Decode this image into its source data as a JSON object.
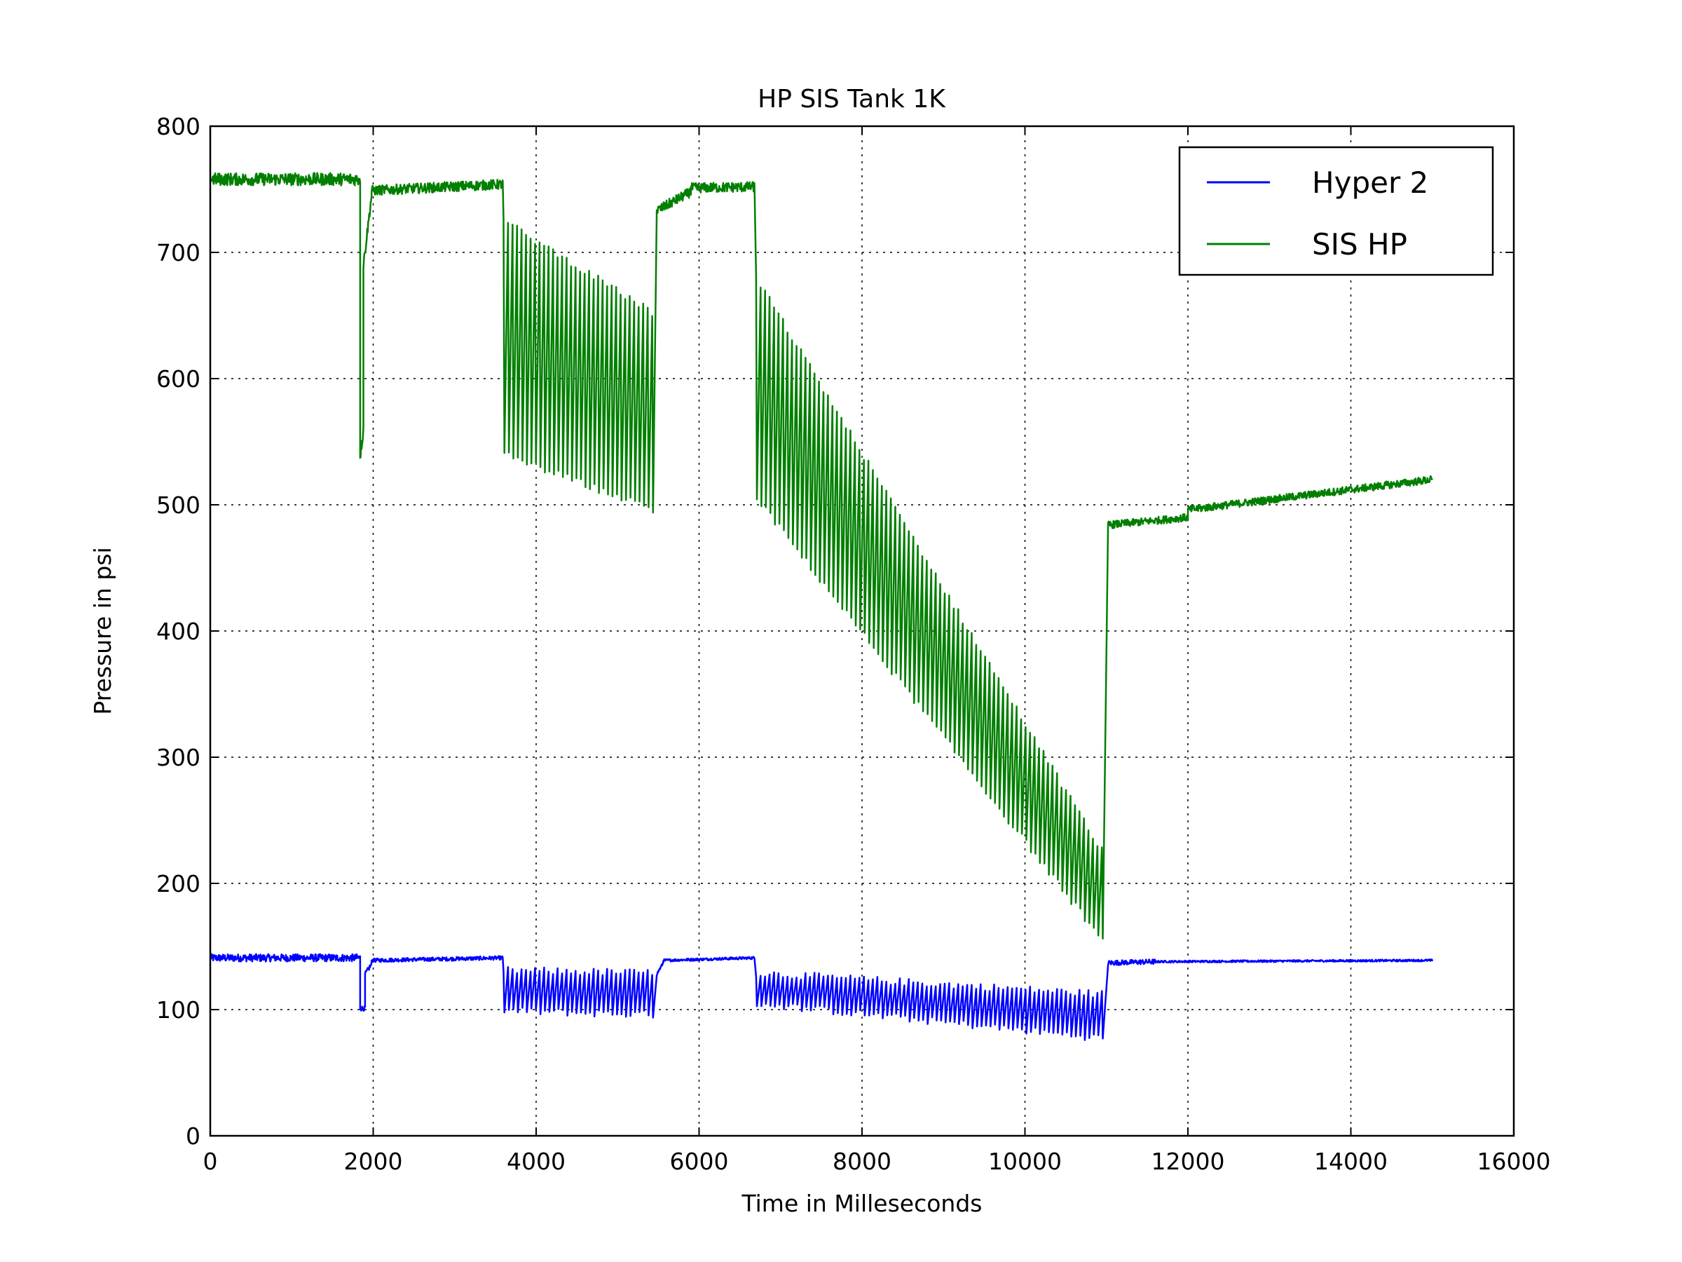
{
  "chart_data": {
    "type": "line",
    "title": "HP SIS Tank 1K",
    "xlabel": "Time in Milleseconds",
    "ylabel": "Pressure in psi",
    "xlim": [
      0,
      16000
    ],
    "ylim": [
      0,
      800
    ],
    "xticks": [
      0,
      2000,
      4000,
      6000,
      8000,
      10000,
      12000,
      14000,
      16000
    ],
    "yticks": [
      0,
      100,
      200,
      300,
      400,
      500,
      600,
      700,
      800
    ],
    "grid": true,
    "legend_position": "top-right",
    "series": [
      {
        "name": "Hyper 2",
        "color": "#0000ff",
        "segments": [
          {
            "type": "flat",
            "x0": 0,
            "x1": 1840,
            "y0": 141,
            "y1": 141,
            "noise": 3
          },
          {
            "type": "flat",
            "x0": 1840,
            "x1": 1900,
            "y0": 101,
            "y1": 101,
            "noise": 2
          },
          {
            "type": "flat",
            "x0": 1900,
            "x1": 1980,
            "y0": 128,
            "y1": 136,
            "noise": 2
          },
          {
            "type": "flat",
            "x0": 1980,
            "x1": 3590,
            "y0": 139,
            "y1": 141,
            "noise": 1.5
          },
          {
            "type": "osc",
            "x0": 3600,
            "x1": 5480,
            "top0": 131,
            "top1": 129,
            "bot0": 99,
            "bot1": 96,
            "period": 55
          },
          {
            "type": "flat",
            "x0": 5480,
            "x1": 5560,
            "y0": 128,
            "y1": 137,
            "noise": 1
          },
          {
            "type": "flat",
            "x0": 5560,
            "x1": 6680,
            "y0": 139,
            "y1": 141,
            "noise": 1
          },
          {
            "type": "osc",
            "x0": 6700,
            "x1": 11000,
            "top0": 129,
            "top1": 112,
            "bot0": 105,
            "bot1": 77,
            "period": 55
          },
          {
            "type": "flat",
            "x0": 11020,
            "x1": 11600,
            "y0": 137,
            "y1": 138,
            "noise": 2
          },
          {
            "type": "flat",
            "x0": 11600,
            "x1": 15000,
            "y0": 138,
            "y1": 139,
            "noise": 0.8
          }
        ]
      },
      {
        "name": "SIS HP",
        "color": "#007f00",
        "segments": [
          {
            "type": "flat",
            "x0": 0,
            "x1": 1840,
            "y0": 758,
            "y1": 758,
            "noise": 5
          },
          {
            "type": "flat",
            "x0": 1840,
            "x1": 1880,
            "y0": 540,
            "y1": 560,
            "noise": 6
          },
          {
            "type": "flat",
            "x0": 1880,
            "x1": 1980,
            "y0": 690,
            "y1": 745,
            "noise": 4
          },
          {
            "type": "flat",
            "x0": 1980,
            "x1": 3590,
            "y0": 749,
            "y1": 754,
            "noise": 4
          },
          {
            "type": "osc",
            "x0": 3600,
            "x1": 5480,
            "top0": 725,
            "top1": 650,
            "bot0": 540,
            "bot1": 495,
            "period": 55
          },
          {
            "type": "flat",
            "x0": 5480,
            "x1": 5900,
            "y0": 733,
            "y1": 748,
            "noise": 4
          },
          {
            "type": "flat",
            "x0": 5900,
            "x1": 6680,
            "y0": 751,
            "y1": 752,
            "noise": 4
          },
          {
            "type": "osc",
            "x0": 6700,
            "x1": 11000,
            "top0": 680,
            "top1": 220,
            "bot0": 505,
            "bot1": 150,
            "period": 55
          },
          {
            "type": "flat",
            "x0": 11020,
            "x1": 12000,
            "y0": 484,
            "y1": 490,
            "noise": 3
          },
          {
            "type": "flat",
            "x0": 12000,
            "x1": 15000,
            "y0": 496,
            "y1": 520,
            "noise": 3
          }
        ]
      }
    ]
  }
}
